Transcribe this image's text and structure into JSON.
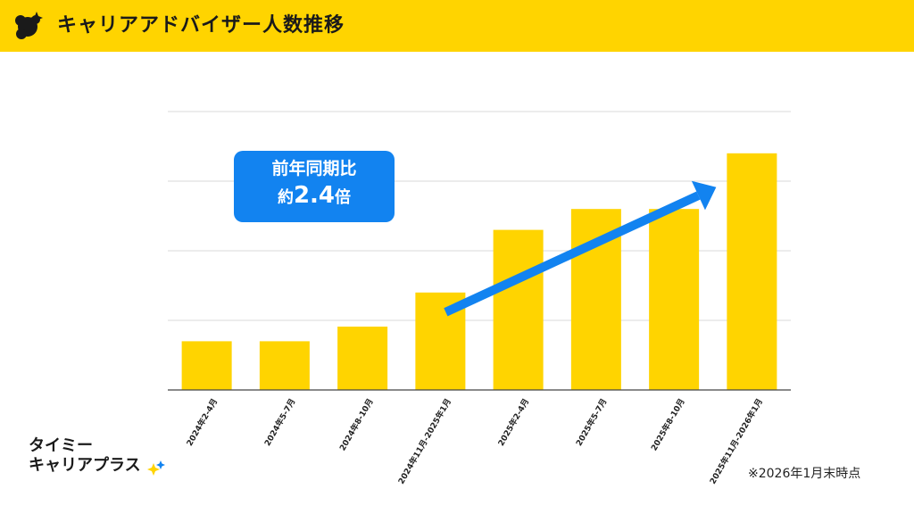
{
  "header": {
    "title": "キャリアアドバイザー人数推移"
  },
  "colors": {
    "accent": "#ffd400",
    "bar": "#ffd400",
    "callout": "#1283f0",
    "arrow": "#1283f0",
    "grid": "#d9d9d9"
  },
  "callout": {
    "line1": "前年同期比",
    "line2_prefix": "約",
    "line2_value": "2.4",
    "line2_suffix": "倍"
  },
  "brand": {
    "line1": "タイミー",
    "line2": "キャリアプラス"
  },
  "footnote": "※2026年1月末時点",
  "chart_data": {
    "type": "bar",
    "categories": [
      "2024年2-4月",
      "2024年5-7月",
      "2024年8-10月",
      "2024年11月-2025年1月",
      "2025年2-4月",
      "2025年5-7月",
      "2025年8-10月",
      "2025年11月-2026年1月"
    ],
    "values": [
      0.7,
      0.7,
      0.91,
      1.4,
      2.3,
      2.6,
      2.6,
      3.4
    ],
    "ylim": [
      0,
      4
    ],
    "grid": true,
    "y_tick_labels_shown": false,
    "trend_arrow": {
      "from_index": 3,
      "to_index": 7
    }
  }
}
